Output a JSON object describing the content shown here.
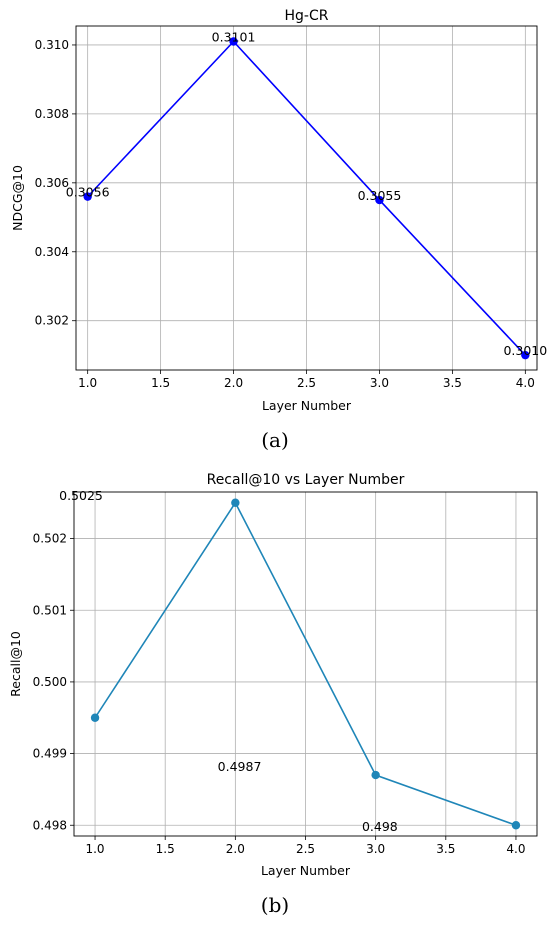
{
  "chart_data": [
    {
      "type": "line",
      "title": "Hg-CR",
      "xlabel": "Layer Number",
      "ylabel": "NDCG@10",
      "x": [
        1,
        2,
        3,
        4
      ],
      "series": [
        {
          "values": [
            0.3056,
            0.3101,
            0.3055,
            0.301
          ],
          "color": "#0000ff"
        }
      ],
      "data_labels": [
        {
          "text": "0.3056",
          "x": 1,
          "y": 0.3056
        },
        {
          "text": "0.3101",
          "x": 2,
          "y": 0.3101
        },
        {
          "text": "0.3055",
          "x": 3,
          "y": 0.3055
        },
        {
          "text": "0.3010",
          "x": 4,
          "y": 0.301
        }
      ],
      "xlim": [
        0.92,
        4.08
      ],
      "ylim": [
        0.30057,
        0.31055
      ],
      "xticks": [
        1.0,
        1.5,
        2.0,
        2.5,
        3.0,
        3.5,
        4.0
      ],
      "xtick_labels": [
        "1.0",
        "1.5",
        "2.0",
        "2.5",
        "3.0",
        "3.5",
        "4.0"
      ],
      "yticks": [
        0.302,
        0.304,
        0.306,
        0.308,
        0.31
      ],
      "ytick_labels": [
        "0.302",
        "0.304",
        "0.306",
        "0.308",
        "0.310"
      ],
      "grid": true
    },
    {
      "type": "line",
      "title": "Recall@10 vs Layer Number",
      "xlabel": "Layer Number",
      "ylabel": "Recall@10",
      "x": [
        1,
        2,
        3,
        4
      ],
      "series": [
        {
          "values": [
            0.4995,
            0.5025,
            0.4987,
            0.498
          ],
          "color": "#1f86b8"
        }
      ],
      "data_labels": [
        {
          "text": "0.5025",
          "x": 0.9,
          "y": 0.50254
        },
        {
          "text": "0.4987",
          "x": 2.03,
          "y": 0.49876
        },
        {
          "text": "0.498",
          "x": 3.03,
          "y": 0.49792
        }
      ],
      "xlim": [
        0.85,
        4.15
      ],
      "ylim": [
        0.49785,
        0.50265
      ],
      "xticks": [
        1.0,
        1.5,
        2.0,
        2.5,
        3.0,
        3.5,
        4.0
      ],
      "xtick_labels": [
        "1.0",
        "1.5",
        "2.0",
        "2.5",
        "3.0",
        "3.5",
        "4.0"
      ],
      "yticks": [
        0.498,
        0.499,
        0.5,
        0.501,
        0.502
      ],
      "ytick_labels": [
        "0.498",
        "0.499",
        "0.500",
        "0.501",
        "0.502"
      ],
      "grid": true
    }
  ],
  "captions": [
    "(a)",
    "(b)"
  ]
}
